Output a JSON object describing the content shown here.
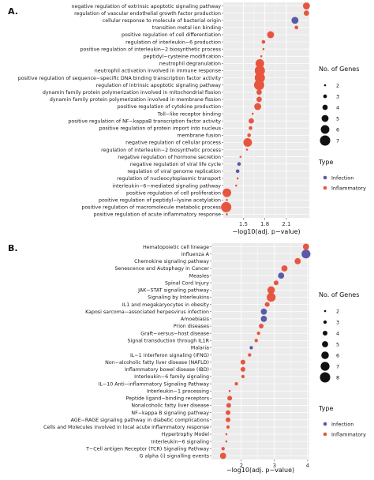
{
  "colors": {
    "Infection": "#5a5aa8",
    "Inflammatory": "#e8553e",
    "panel_bg": "#ebebeb",
    "grid": "#ffffff"
  },
  "chart_data": [
    {
      "type": "scatter",
      "panel": "A.",
      "xlabel": "−log10(adj. p−value)",
      "xticks": [
        "1.5",
        "1.8",
        "2.1"
      ],
      "xlim": [
        1.22,
        2.42
      ],
      "size_legend_title": "No. of Genes",
      "size_legend": [
        2,
        3,
        4,
        5,
        6,
        7
      ],
      "size_range": [
        2,
        7
      ],
      "type_legend_title": "Type",
      "type_legend": [
        "Infection",
        "Inflammatory"
      ],
      "categories": [
        {
          "label": "negative regulation of extrinsic apoptotic signaling pathway",
          "x": 2.38,
          "size": 5,
          "type": "Inflammatory"
        },
        {
          "label": "regulation of vascular endothelial growth factor production",
          "x": 2.38,
          "size": 4,
          "type": "Inflammatory"
        },
        {
          "label": "cellular response to molecule of bacterial origin",
          "x": 2.22,
          "size": 5,
          "type": "Infection"
        },
        {
          "label": "transition metal ion binding",
          "x": 2.24,
          "size": 3,
          "type": "Inflammatory"
        },
        {
          "label": "positive regulation of cell differentiation",
          "x": 1.88,
          "size": 5,
          "type": "Inflammatory"
        },
        {
          "label": "regulation of interleukin−6 production",
          "x": 1.78,
          "size": 3,
          "type": "Inflammatory"
        },
        {
          "label": "positive regulation of interleukin−2 biosynthetic process",
          "x": 1.78,
          "size": 2,
          "type": "Inflammatory"
        },
        {
          "label": "peptidyl−cysteine modification",
          "x": 1.75,
          "size": 2,
          "type": "Inflammatory"
        },
        {
          "label": "neutrophil degranulation",
          "x": 1.73,
          "size": 6,
          "type": "Inflammatory"
        },
        {
          "label": "neutrophil activation involved in immune response",
          "x": 1.73,
          "size": 7,
          "type": "Inflammatory"
        },
        {
          "label": "positive regulation of sequence−specific DNA binding transcription factor activity",
          "x": 1.73,
          "size": 7,
          "type": "Inflammatory"
        },
        {
          "label": "regulation of intrinsic apoptotic signaling pathway",
          "x": 1.72,
          "size": 7,
          "type": "Inflammatory"
        },
        {
          "label": "dynamin family protein polymerization involved in mitochondrial fission",
          "x": 1.72,
          "size": 4,
          "type": "Inflammatory"
        },
        {
          "label": "dynamin family protein polymerization involved in membrane fission",
          "x": 1.72,
          "size": 4,
          "type": "Inflammatory"
        },
        {
          "label": "positive regulation of cytokine production",
          "x": 1.7,
          "size": 5,
          "type": "Inflammatory"
        },
        {
          "label": "Toll−like receptor binding",
          "x": 1.63,
          "size": 2,
          "type": "Inflammatory"
        },
        {
          "label": "positive regulation of NF−kappaB transcription factor activity",
          "x": 1.61,
          "size": 4,
          "type": "Inflammatory"
        },
        {
          "label": "positive regulation of protein import into nucleus",
          "x": 1.6,
          "size": 3,
          "type": "Inflammatory"
        },
        {
          "label": "membrane fusion",
          "x": 1.58,
          "size": 3,
          "type": "Inflammatory"
        },
        {
          "label": "negative regulation of cellular process",
          "x": 1.56,
          "size": 6,
          "type": "Inflammatory"
        },
        {
          "label": "regulation of interleukin−2 biosynthetic process",
          "x": 1.55,
          "size": 2,
          "type": "Inflammatory"
        },
        {
          "label": "negative regulation of hormone secretion",
          "x": 1.46,
          "size": 2,
          "type": "Inflammatory"
        },
        {
          "label": "negative regulation of viral life cycle",
          "x": 1.44,
          "size": 3,
          "type": "Infection"
        },
        {
          "label": "regulation of viral genome replication",
          "x": 1.42,
          "size": 3,
          "type": "Infection"
        },
        {
          "label": "regulation of nucleocytoplasmic transport",
          "x": 1.42,
          "size": 2,
          "type": "Inflammatory"
        },
        {
          "label": "interleukin−6−mediated signaling pathway",
          "x": 1.4,
          "size": 2,
          "type": "Inflammatory"
        },
        {
          "label": "positive regulation of cell proliferation",
          "x": 1.27,
          "size": 6,
          "type": "Inflammatory"
        },
        {
          "label": "positive regulation of peptidyl−lysine acetylation",
          "x": 1.27,
          "size": 2,
          "type": "Inflammatory"
        },
        {
          "label": "positive regulation of macromolecule metabolic process",
          "x": 1.26,
          "size": 7,
          "type": "Inflammatory"
        },
        {
          "label": "positive regulation of acute inflammatory response",
          "x": 1.27,
          "size": 2,
          "type": "Inflammatory"
        }
      ]
    },
    {
      "type": "scatter",
      "panel": "B.",
      "xlabel": "−log10(adj. p−value)",
      "xticks": [
        "2",
        "3",
        "4"
      ],
      "xlim": [
        1.1,
        4.05
      ],
      "size_legend_title": "No. of Genes",
      "size_legend": [
        2,
        3,
        4,
        5,
        6,
        7,
        8
      ],
      "size_range": [
        2,
        8
      ],
      "type_legend_title": "Type",
      "type_legend": [
        "Infection",
        "Inflammatory"
      ],
      "categories": [
        {
          "label": "Hematopoietic cell lineage",
          "x": 3.95,
          "size": 5,
          "type": "Inflammatory"
        },
        {
          "label": "Influenza A",
          "x": 3.95,
          "size": 7,
          "type": "Infection"
        },
        {
          "label": "Chemokine signaling pathway",
          "x": 3.7,
          "size": 5,
          "type": "Inflammatory"
        },
        {
          "label": "Senescence and Autophagy in Cancer",
          "x": 3.3,
          "size": 5,
          "type": "Inflammatory"
        },
        {
          "label": "Measles",
          "x": 3.2,
          "size": 5,
          "type": "Infection"
        },
        {
          "label": "Spinal Cord Injury",
          "x": 3.05,
          "size": 4,
          "type": "Inflammatory"
        },
        {
          "label": "JAK−STAT signaling pathway",
          "x": 2.9,
          "size": 6,
          "type": "Inflammatory"
        },
        {
          "label": "Signaling by Interleukins",
          "x": 2.9,
          "size": 7,
          "type": "Inflammatory"
        },
        {
          "label": "IL1 and megakaryocytes in obesity",
          "x": 2.78,
          "size": 4,
          "type": "Inflammatory"
        },
        {
          "label": "Kaposi sarcoma−associated herpesvirus infection",
          "x": 2.68,
          "size": 5,
          "type": "Infection"
        },
        {
          "label": "Amoebiasis",
          "x": 2.68,
          "size": 5,
          "type": "Infection"
        },
        {
          "label": "Prion diseases",
          "x": 2.6,
          "size": 4,
          "type": "Inflammatory"
        },
        {
          "label": "Graft−versus−host disease",
          "x": 2.52,
          "size": 3,
          "type": "Inflammatory"
        },
        {
          "label": "Signal transduction through IL1R",
          "x": 2.45,
          "size": 3,
          "type": "Inflammatory"
        },
        {
          "label": "Malaria",
          "x": 2.3,
          "size": 3,
          "type": "Infection"
        },
        {
          "label": "IL−1 interferon signaling (IFNG)",
          "x": 2.25,
          "size": 3,
          "type": "Inflammatory"
        },
        {
          "label": "Non−alcoholic fatty liver disease (NAFLD)",
          "x": 2.05,
          "size": 4,
          "type": "Inflammatory"
        },
        {
          "label": "Inflammatory bowel disease (IBD)",
          "x": 2.05,
          "size": 4,
          "type": "Inflammatory"
        },
        {
          "label": "Interleukin−6 family signaling",
          "x": 2.05,
          "size": 3,
          "type": "Inflammatory"
        },
        {
          "label": "IL−10 Anti−inflammatory Signaling Pathway",
          "x": 1.85,
          "size": 3,
          "type": "Inflammatory"
        },
        {
          "label": "Interleukin−1 processing",
          "x": 1.65,
          "size": 2,
          "type": "Inflammatory"
        },
        {
          "label": "Peptide ligand−binding receptors",
          "x": 1.65,
          "size": 4,
          "type": "Inflammatory"
        },
        {
          "label": "Nonalcoholic fatty liver disease",
          "x": 1.62,
          "size": 4,
          "type": "Inflammatory"
        },
        {
          "label": "NF−kappa B signaling pathway",
          "x": 1.6,
          "size": 4,
          "type": "Inflammatory"
        },
        {
          "label": "AGE−RAGE signaling pathway in diabetic complications",
          "x": 1.6,
          "size": 4,
          "type": "Inflammatory"
        },
        {
          "label": "Cells and Molecules involved in local acute inflammatory response",
          "x": 1.6,
          "size": 3,
          "type": "Inflammatory"
        },
        {
          "label": "Hypertrophy Model",
          "x": 1.55,
          "size": 2,
          "type": "Inflammatory"
        },
        {
          "label": "Interleukin−6 signaling",
          "x": 1.55,
          "size": 2,
          "type": "Inflammatory"
        },
        {
          "label": "T−Cell antigen Receptor (TCR) Signaling Pathway",
          "x": 1.45,
          "size": 3,
          "type": "Inflammatory"
        },
        {
          "label": "G alpha (i) signalling events",
          "x": 1.45,
          "size": 5,
          "type": "Inflammatory"
        }
      ]
    }
  ]
}
